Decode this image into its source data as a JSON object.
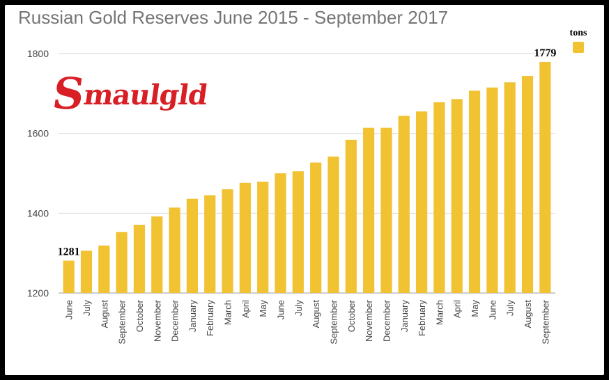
{
  "colors": {
    "bar": "#f1c232",
    "grid": "#d9d9d9",
    "logo_red": "#d81f26"
  },
  "logo": {
    "first_letter": "S",
    "rest": "maulgld"
  },
  "chart_data": {
    "type": "bar",
    "title": "Russian Gold Reserves June 2015 - September 2017",
    "xlabel": "",
    "ylabel": "",
    "ylim": [
      1200,
      1800
    ],
    "yticks": [
      1200,
      1400,
      1600,
      1800
    ],
    "grid": true,
    "legend_position": "top-right",
    "categories": [
      "June",
      "July",
      "August",
      "September",
      "October",
      "November",
      "December",
      "January",
      "February",
      "March",
      "April",
      "May",
      "June",
      "July",
      "August",
      "September",
      "October",
      "November",
      "December",
      "January",
      "February",
      "March",
      "April",
      "May",
      "June",
      "July",
      "August",
      "September"
    ],
    "series": [
      {
        "name": "tons",
        "values": [
          1281,
          1306,
          1319,
          1353,
          1371,
          1392,
          1414,
          1436,
          1445,
          1460,
          1476,
          1479,
          1500,
          1505,
          1527,
          1542,
          1584,
          1614,
          1614,
          1644,
          1655,
          1678,
          1686,
          1707,
          1715,
          1728,
          1744,
          1779
        ]
      }
    ],
    "data_labels": [
      {
        "index": 0,
        "text": "1281"
      },
      {
        "index": 27,
        "text": "1779"
      }
    ]
  }
}
